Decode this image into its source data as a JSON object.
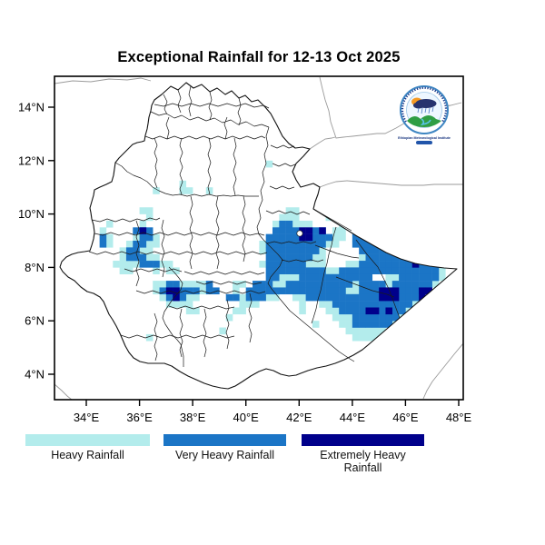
{
  "title": "Exceptional Rainfall for 12-13 Oct 2025",
  "axes": {
    "lat_ticks": [
      "14°N",
      "12°N",
      "10°N",
      "8°N",
      "6°N",
      "4°N"
    ],
    "lon_ticks": [
      "34°E",
      "36°E",
      "38°E",
      "40°E",
      "42°E",
      "44°E",
      "46°E",
      "48°E"
    ]
  },
  "legend": {
    "items": [
      {
        "label": "Heavy Rainfall",
        "color": "#b3ecec"
      },
      {
        "label": "Very Heavy Rainfall",
        "color": "#1b75c6"
      },
      {
        "label": "Extremely Heavy Rainfall",
        "color": "#00008b"
      }
    ]
  },
  "logo": {
    "caption": "Ethiopian Meteorological Institute"
  },
  "map_data": {
    "type": "heatmap",
    "description": "Gridded exceptional-rainfall cells over Ethiopia; runs are [lat_sw, lon_sw, n_cells_east] on a 0.25 degree grid",
    "lon_range": [
      32.8,
      48.17
    ],
    "lat_range": [
      3.05,
      15.12
    ],
    "cell_size_deg": 0.25,
    "categories": [
      "Heavy Rainfall",
      "Very Heavy Rainfall",
      "Extremely Heavy Rainfall"
    ],
    "runs": {
      "heavy": [
        [
          11.75,
          40.75,
          1
        ],
        [
          11.0,
          37.5,
          1
        ],
        [
          10.75,
          37.5,
          2
        ],
        [
          10.75,
          36.5,
          1
        ],
        [
          10.75,
          38.5,
          1
        ],
        [
          10.0,
          36.0,
          2
        ],
        [
          9.75,
          36.25,
          1
        ],
        [
          9.5,
          34.75,
          1
        ],
        [
          9.5,
          36.0,
          1
        ],
        [
          9.25,
          34.5,
          1
        ],
        [
          9.0,
          34.75,
          1
        ],
        [
          9.0,
          35.75,
          1
        ],
        [
          9.0,
          36.5,
          1
        ],
        [
          8.75,
          34.75,
          1
        ],
        [
          8.75,
          35.5,
          1
        ],
        [
          8.75,
          36.25,
          2
        ],
        [
          8.5,
          35.25,
          1
        ],
        [
          8.5,
          36.0,
          2
        ],
        [
          8.25,
          35.25,
          1
        ],
        [
          8.25,
          36.25,
          2
        ],
        [
          8.0,
          35.0,
          2
        ],
        [
          8.0,
          35.5,
          2
        ],
        [
          8.0,
          36.75,
          2
        ],
        [
          7.75,
          35.25,
          2
        ],
        [
          7.75,
          36.5,
          1
        ],
        [
          7.75,
          37.0,
          2
        ],
        [
          7.25,
          36.5,
          2
        ],
        [
          7.25,
          37.5,
          4
        ],
        [
          7.0,
          36.5,
          1
        ],
        [
          7.0,
          38.25,
          1
        ],
        [
          6.75,
          36.75,
          1
        ],
        [
          6.75,
          37.75,
          2
        ],
        [
          6.5,
          37.0,
          2
        ],
        [
          6.5,
          37.5,
          2
        ],
        [
          6.25,
          37.75,
          2
        ],
        [
          5.25,
          36.25,
          1
        ],
        [
          6.0,
          39.25,
          1
        ],
        [
          5.5,
          39.0,
          1
        ],
        [
          7.25,
          39.5,
          2
        ],
        [
          7.0,
          39.5,
          1
        ],
        [
          6.75,
          39.75,
          1
        ],
        [
          6.75,
          40.75,
          2
        ],
        [
          6.5,
          39.75,
          3
        ],
        [
          6.25,
          39.5,
          2
        ],
        [
          10.0,
          41.5,
          2
        ],
        [
          9.75,
          41.25,
          3
        ],
        [
          9.75,
          43.0,
          2
        ],
        [
          9.5,
          41.0,
          1
        ],
        [
          9.5,
          41.75,
          3
        ],
        [
          9.5,
          43.5,
          3
        ],
        [
          9.25,
          43.25,
          2
        ],
        [
          9.0,
          43.25,
          2
        ],
        [
          8.75,
          40.5,
          1
        ],
        [
          8.75,
          43.0,
          2
        ],
        [
          8.5,
          40.5,
          1
        ],
        [
          8.5,
          42.75,
          1
        ],
        [
          8.5,
          46.5,
          1
        ],
        [
          8.25,
          42.5,
          2
        ],
        [
          8.25,
          44.25,
          1
        ],
        [
          8.25,
          46.75,
          1
        ],
        [
          8.0,
          40.5,
          1
        ],
        [
          8.0,
          42.25,
          3
        ],
        [
          8.0,
          43.75,
          2
        ],
        [
          8.0,
          47.5,
          1
        ],
        [
          7.75,
          43.0,
          2
        ],
        [
          7.75,
          47.25,
          1
        ],
        [
          7.5,
          41.25,
          3
        ],
        [
          7.5,
          45.25,
          2
        ],
        [
          7.5,
          47.25,
          1
        ],
        [
          7.25,
          41.0,
          2
        ],
        [
          7.25,
          44.0,
          1
        ],
        [
          7.25,
          45.25,
          1
        ],
        [
          7.25,
          47.0,
          1
        ],
        [
          7.0,
          43.75,
          2
        ],
        [
          6.75,
          41.75,
          2
        ],
        [
          6.75,
          46.5,
          1
        ],
        [
          6.5,
          42.0,
          1
        ],
        [
          6.5,
          42.75,
          2
        ],
        [
          6.5,
          46.25,
          1
        ],
        [
          6.25,
          42.0,
          1
        ],
        [
          6.25,
          43.0,
          2
        ],
        [
          6.25,
          46.0,
          1
        ],
        [
          6.0,
          43.25,
          3
        ],
        [
          6.0,
          45.75,
          1
        ],
        [
          5.75,
          42.5,
          1
        ],
        [
          5.75,
          43.5,
          2
        ],
        [
          5.75,
          45.5,
          1
        ],
        [
          5.5,
          43.75,
          6
        ],
        [
          5.25,
          44.0,
          4
        ]
      ],
      "very_heavy": [
        [
          9.25,
          35.75,
          3
        ],
        [
          9.0,
          36.0,
          2
        ],
        [
          9.0,
          34.5,
          1
        ],
        [
          8.75,
          35.75,
          2
        ],
        [
          8.75,
          34.5,
          1
        ],
        [
          8.5,
          35.5,
          2
        ],
        [
          8.25,
          35.5,
          3
        ],
        [
          8.0,
          36.0,
          3
        ],
        [
          7.25,
          37.0,
          2
        ],
        [
          7.25,
          38.5,
          1
        ],
        [
          7.0,
          36.75,
          6
        ],
        [
          7.0,
          38.5,
          2
        ],
        [
          6.75,
          37.0,
          3
        ],
        [
          6.75,
          39.25,
          2
        ],
        [
          6.75,
          40.0,
          3
        ],
        [
          7.25,
          40.25,
          3
        ],
        [
          7.0,
          40.0,
          4
        ],
        [
          9.5,
          41.25,
          2
        ],
        [
          9.25,
          41.0,
          4
        ],
        [
          9.25,
          42.5,
          2
        ],
        [
          9.25,
          44.25,
          3
        ],
        [
          9.0,
          40.75,
          5
        ],
        [
          9.0,
          42.5,
          3
        ],
        [
          9.0,
          44.0,
          6
        ],
        [
          8.75,
          40.75,
          9
        ],
        [
          8.75,
          44.0,
          8
        ],
        [
          8.5,
          40.75,
          8
        ],
        [
          8.5,
          44.25,
          9
        ],
        [
          8.25,
          40.75,
          7
        ],
        [
          8.25,
          44.5,
          9
        ],
        [
          8.0,
          40.75,
          6
        ],
        [
          8.0,
          44.25,
          13
        ],
        [
          7.75,
          40.75,
          9
        ],
        [
          7.75,
          43.5,
          15
        ],
        [
          7.5,
          40.75,
          2
        ],
        [
          7.5,
          42.0,
          11
        ],
        [
          7.5,
          45.75,
          6
        ],
        [
          7.25,
          41.5,
          10
        ],
        [
          7.25,
          44.25,
          4
        ],
        [
          7.25,
          45.5,
          6
        ],
        [
          7.0,
          41.0,
          11
        ],
        [
          7.0,
          44.25,
          11
        ],
        [
          6.75,
          42.25,
          10
        ],
        [
          6.75,
          44.75,
          7
        ],
        [
          6.5,
          43.25,
          12
        ],
        [
          6.25,
          43.5,
          10
        ],
        [
          6.0,
          44.0,
          7
        ],
        [
          5.75,
          44.0,
          6
        ]
      ],
      "extreme": [
        [
          9.25,
          36.0,
          1
        ],
        [
          7.0,
          37.0,
          2
        ],
        [
          6.75,
          37.25,
          1
        ],
        [
          9.25,
          42.0,
          2
        ],
        [
          9.25,
          42.75,
          1
        ],
        [
          9.0,
          42.0,
          2
        ],
        [
          8.0,
          46.25,
          1
        ],
        [
          7.0,
          45.0,
          3
        ],
        [
          6.75,
          45.0,
          3
        ],
        [
          7.0,
          46.5,
          2
        ],
        [
          6.75,
          46.5,
          1
        ],
        [
          6.25,
          44.5,
          2
        ],
        [
          6.25,
          45.25,
          1
        ]
      ]
    }
  }
}
